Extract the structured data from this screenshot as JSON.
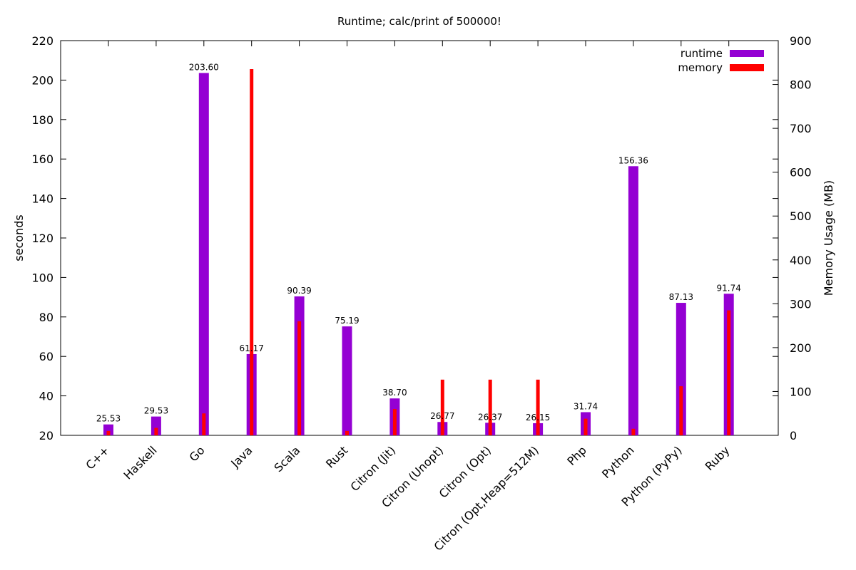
{
  "chart_data": {
    "type": "bar",
    "title": "Runtime; calc/print of 500000!",
    "xlabel": "",
    "ylabel": "seconds",
    "y2label": "Memory Usage (MB)",
    "ylim": [
      20,
      220
    ],
    "y2lim": [
      0,
      900
    ],
    "yticks": [
      "20",
      "40",
      "60",
      "80",
      "100",
      "120",
      "140",
      "160",
      "180",
      "200",
      "220"
    ],
    "y2ticks": [
      "0",
      "100",
      "200",
      "300",
      "400",
      "500",
      "600",
      "700",
      "800",
      "900"
    ],
    "legend_position": "top-right",
    "grid": false,
    "categories": [
      "C++",
      "Haskell",
      "Go",
      "Java",
      "Scala",
      "Rust",
      "Citron (Jit)",
      "Citron (Unopt)",
      "Citron (Opt)",
      "Citron (Opt,Heap=512M)",
      "Php",
      "Python",
      "Python (PyPy)",
      "Ruby"
    ],
    "series": [
      {
        "name": "runtime",
        "axis": "left",
        "color": "#9400d3",
        "values": [
          25.53,
          29.53,
          203.6,
          61.17,
          90.39,
          75.19,
          38.7,
          26.77,
          26.37,
          26.15,
          31.74,
          156.36,
          87.13,
          91.74
        ],
        "labels": [
          "25.53",
          "29.53",
          "203.60",
          "61.17",
          "90.39",
          "75.19",
          "38.70",
          "26.77",
          "26.37",
          "26.15",
          "31.74",
          "156.36",
          "87.13",
          "91.74"
        ]
      },
      {
        "name": "memory",
        "axis": "right",
        "color": "#ff0000",
        "values": [
          10,
          17,
          50,
          835,
          260,
          10,
          60,
          127,
          127,
          127,
          38,
          15,
          112,
          285
        ]
      }
    ]
  }
}
